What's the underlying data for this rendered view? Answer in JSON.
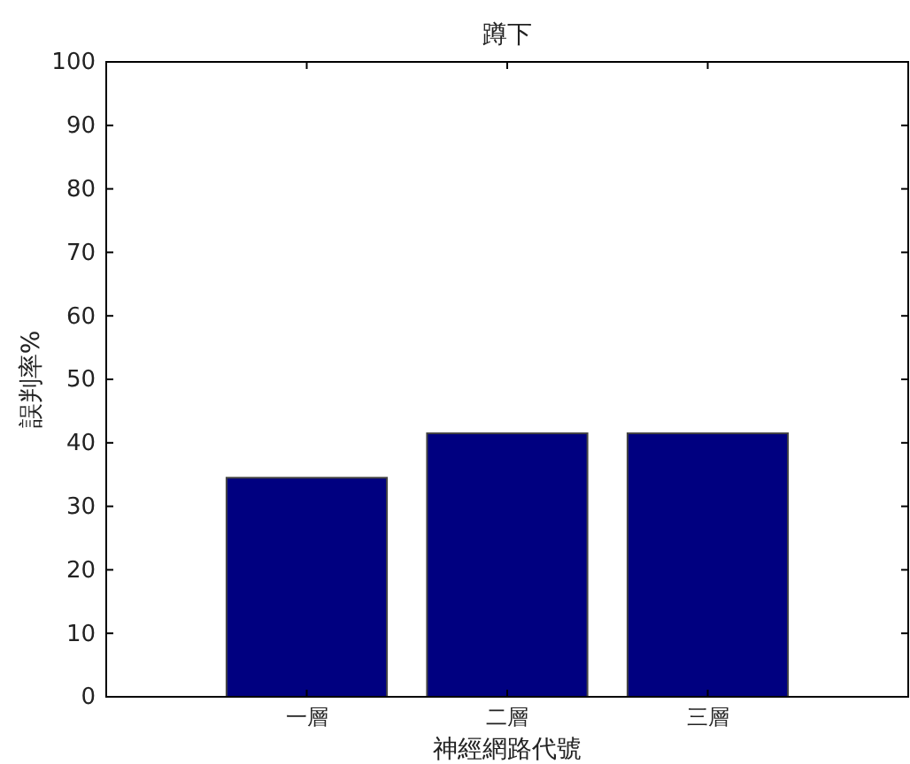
{
  "chart_data": {
    "type": "bar",
    "title": "蹲下",
    "xlabel": "神經網路代號",
    "ylabel": "誤判率%",
    "categories": [
      "一層",
      "二層",
      "三層"
    ],
    "values": [
      34.5,
      41.5,
      41.5
    ],
    "color": "#000080",
    "ylim": [
      0,
      100
    ],
    "yticks": [
      0,
      10,
      20,
      30,
      40,
      50,
      60,
      70,
      80,
      90,
      100
    ],
    "grid": false
  }
}
